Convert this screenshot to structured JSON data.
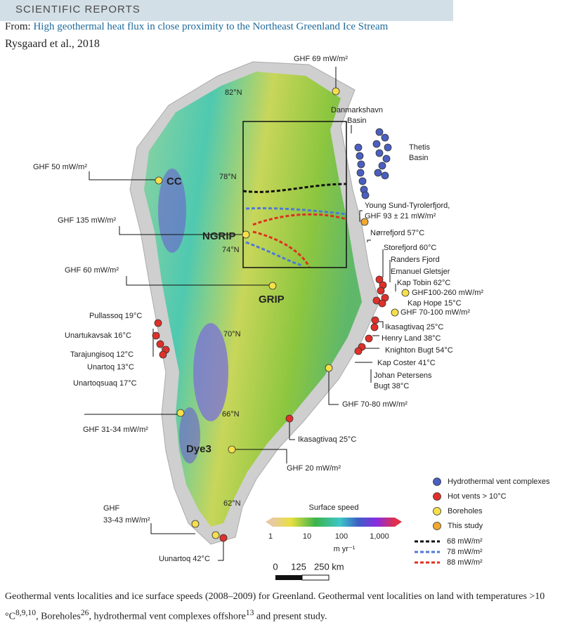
{
  "header": {
    "brand": "SCIENTIFIC REPORTS",
    "from_prefix": "From: ",
    "article_title": "High geothermal heat flux in close proximity to the Northeast Greenland Ice Stream",
    "authors": "Rysgaard et al., 2018"
  },
  "map": {
    "labels": [
      "GHF 69 mW/m²",
      "Danmarkshavn",
      "Basin",
      "Thetis",
      "Basin",
      "GHF 50 mW/m²",
      "CC",
      "82°N",
      "78°N",
      "Young Sund-Tyrolerfjord,",
      "GHF 93 ± 21 mW/m²",
      "GHF 135 mW/m²",
      "NGRIP",
      "74°N",
      "Nørrefjord 57°C",
      "Storefjord 60°C",
      "Randers Fjord",
      "Emanuel Gletsjer",
      "Kap Tobin 62°C",
      "GHF100-260 mW/m²",
      "Kap Hope 15°C",
      "GHF 70-100 mW/m²",
      "GHF 60 mW/m²",
      "GRIP",
      "Pullassoq 19°C",
      "Ikasagtivaq 25°C",
      "Unartukavsak 16°C",
      "70°N",
      "Henry Land 38°C",
      "Tarajungisoq 12°C",
      "Knighton Bugt 54°C",
      "Unartoq 13°C",
      "Kap Coster 41°C",
      "Johan Petersens",
      "Bugt 38°C",
      "Unartoqsuaq 17°C",
      "GHF 70-80 mW/m²",
      "GHF 31-34 mW/m²",
      "66°N",
      "Ikasagtivaq 25°C",
      "Dye3",
      "GHF 20 mW/m²",
      "62°N",
      "GHF",
      "33-43 mW/m²",
      "Uunartoq 42°C"
    ],
    "legend": [
      "Hydrothermal vent complexes",
      "Hot vents > 10°C",
      "Boreholes",
      "This study"
    ],
    "flux_lines": [
      "68 mW/m²",
      "78 mW/m²",
      "88 mW/m²"
    ],
    "colorbar": {
      "title": "Surface speed",
      "ticks": [
        "1",
        "10",
        "100",
        "1,000"
      ],
      "unit": "m yr⁻¹"
    },
    "scale_bar": [
      "0",
      "125",
      "250 km"
    ]
  },
  "caption": [
    "Geothermal vents localities and ice surface speeds (2008–2009) for Greenland. Geothermal vent localities on land with temperatures >10 °C",
    "8,9,10",
    ", Boreholes",
    "26",
    ", hydrothermal vent complexes offshore",
    "13",
    " and present study."
  ]
}
